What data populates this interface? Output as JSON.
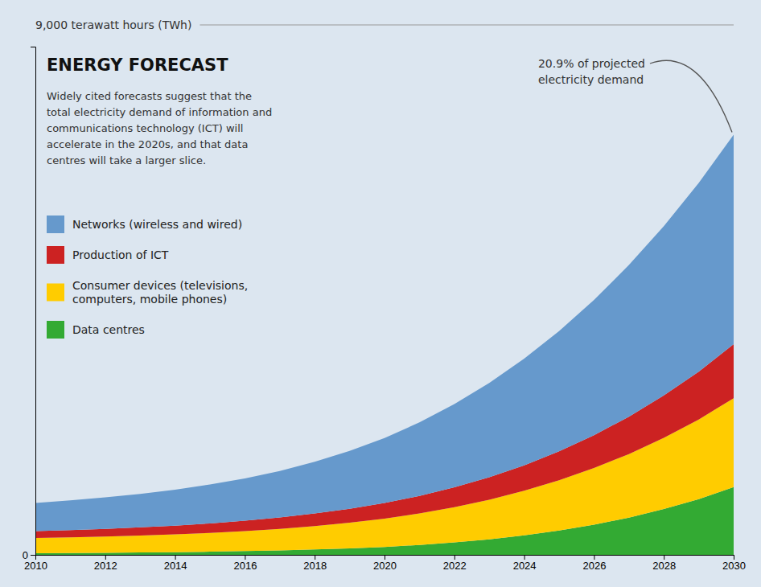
{
  "chart_data": {
    "type": "area",
    "stacked": true,
    "title": "ENERGY FORECAST",
    "subtitle": "Widely cited forecasts suggest that the\ntotal electricity demand of information and\ncommunications technology (ICT) will\naccelerate in the 2020s, and that data\ncentres will take a larger slice.",
    "y_label": "9,000 terawatt hours (TWh)",
    "annotations": [
      "20.9% of projected",
      "electricity demand"
    ],
    "x": [
      2010,
      2011,
      2012,
      2013,
      2014,
      2015,
      2016,
      2017,
      2018,
      2019,
      2020,
      2021,
      2022,
      2023,
      2024,
      2025,
      2026,
      2027,
      2028,
      2029,
      2030
    ],
    "series": [
      {
        "name": "Data centres",
        "color": "#33aa33",
        "values": [
          30,
          33,
          37,
          42,
          48,
          56,
          66,
          78,
          95,
          115,
          140,
          175,
          220,
          275,
          345,
          430,
          535,
          660,
          810,
          985,
          1200
        ]
      },
      {
        "name": "Consumer devices (televisions,\ncomputers, mobile phones)",
        "color": "#ffcc00",
        "values": [
          270,
          278,
          288,
          300,
          315,
          333,
          355,
          382,
          415,
          455,
          502,
          558,
          625,
          702,
          790,
          890,
          1002,
          1125,
          1262,
          1412,
          1575
        ]
      },
      {
        "name": "Production of ICT",
        "color": "#cc2222",
        "values": [
          120,
          127,
          135,
          144,
          155,
          168,
          183,
          201,
          222,
          247,
          276,
          310,
          350,
          397,
          451,
          513,
          583,
          662,
          750,
          848,
          957
        ]
      },
      {
        "name": "Networks (wireless and wired)",
        "color": "#6699cc",
        "values": [
          500,
          527,
          558,
          594,
          637,
          688,
          750,
          825,
          915,
          1023,
          1152,
          1302,
          1475,
          1671,
          1889,
          2130,
          2395,
          2685,
          3000,
          3340,
          3708
        ]
      }
    ],
    "xlim": [
      2010,
      2030
    ],
    "ylim": [
      0,
      9000
    ],
    "xticks": [
      2010,
      2012,
      2014,
      2016,
      2018,
      2020,
      2022,
      2024,
      2026,
      2028,
      2030
    ],
    "yticks": [
      0
    ],
    "grid": false,
    "legend": "upper left"
  }
}
